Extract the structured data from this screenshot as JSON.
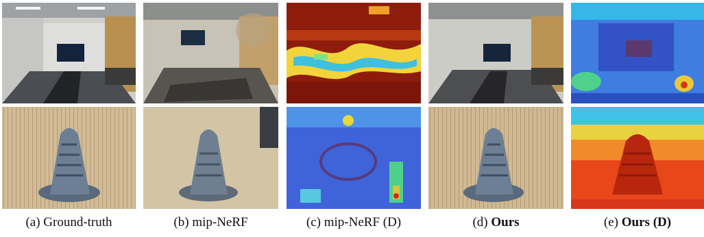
{
  "figure": {
    "columns": [
      {
        "id": "a",
        "prefix": "(a) ",
        "label": "Ground-truth",
        "bold": "",
        "suffix": ""
      },
      {
        "id": "b",
        "prefix": "(b) ",
        "label": "mip-NeRF",
        "bold": "",
        "suffix": ""
      },
      {
        "id": "c",
        "prefix": "(c) ",
        "label": "mip-NeRF (D)",
        "bold": "",
        "suffix": ""
      },
      {
        "id": "d",
        "prefix": "(d) ",
        "label": "",
        "bold": "Ours",
        "suffix": ""
      },
      {
        "id": "e",
        "prefix": "(e) ",
        "label": "",
        "bold": "Ours (D)",
        "suffix": ""
      }
    ],
    "rows": [
      {
        "id": "conference-room",
        "depth_colormap": "jet"
      },
      {
        "id": "statue-on-table",
        "depth_colormap": "jet"
      }
    ],
    "colors": {
      "wall": "#d9d9d6",
      "wood": "#c9b28e",
      "statue": "#6a7d92",
      "depth_far": "#2a3fb8",
      "depth_near": "#b81a0a"
    }
  }
}
